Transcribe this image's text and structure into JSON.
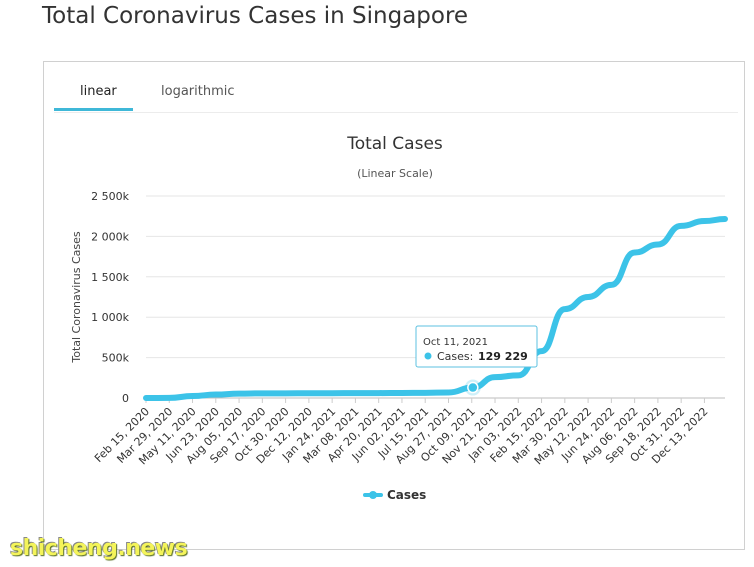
{
  "page": {
    "title": "Total Coronavirus Cases in Singapore"
  },
  "tabs": [
    {
      "label": "linear",
      "active": true
    },
    {
      "label": "logarithmic",
      "active": false
    }
  ],
  "colors": {
    "series": "#3cc3e8",
    "accent": "#3fb8d8"
  },
  "tooltip": {
    "date": "Oct 11, 2021",
    "label": "Cases:",
    "value": "129 229"
  },
  "watermark": {
    "text": "shicheng.news"
  },
  "chart_data": {
    "type": "line",
    "title": "Total Cases",
    "subtitle": "(Linear Scale)",
    "ylabel": "Total Coronavirus Cases",
    "xlabel": "",
    "ylim": [
      0,
      2500000
    ],
    "yticks": [
      0,
      500000,
      1000000,
      1500000,
      2000000,
      2500000
    ],
    "ytick_labels": [
      "0",
      "500k",
      "1 000k",
      "1 500k",
      "2 000k",
      "2 500k"
    ],
    "xtick_labels": [
      "Feb 15, 2020",
      "Mar 29, 2020",
      "May 11, 2020",
      "Jun 23, 2020",
      "Aug 05, 2020",
      "Sep 17, 2020",
      "Oct 30, 2020",
      "Dec 12, 2020",
      "Jan 24, 2021",
      "Mar 08, 2021",
      "Apr 20, 2021",
      "Jun 02, 2021",
      "Jul 15, 2021",
      "Aug 27, 2021",
      "Oct 09, 2021",
      "Nov 21, 2021",
      "Jan 03, 2022",
      "Feb 15, 2022",
      "Mar 30, 2022",
      "May 12, 2022",
      "Jun 24, 2022",
      "Aug 06, 2022",
      "Sep 18, 2022",
      "Oct 31, 2022",
      "Dec 13, 2022"
    ],
    "legend": {
      "position": "bottom",
      "entries": [
        "Cases"
      ]
    },
    "grid": true,
    "series": [
      {
        "name": "Cases",
        "x": [
          "Feb 15, 2020",
          "Mar 29, 2020",
          "May 11, 2020",
          "Jun 23, 2020",
          "Aug 05, 2020",
          "Sep 17, 2020",
          "Oct 30, 2020",
          "Dec 12, 2020",
          "Jan 24, 2021",
          "Mar 08, 2021",
          "Apr 20, 2021",
          "Jun 02, 2021",
          "Jul 15, 2021",
          "Aug 27, 2021",
          "Oct 11, 2021",
          "Nov 21, 2021",
          "Jan 03, 2022",
          "Feb 15, 2022",
          "Mar 30, 2022",
          "May 12, 2022",
          "Jun 24, 2022",
          "Aug 06, 2022",
          "Sep 18, 2022",
          "Oct 31, 2022",
          "Dec 13, 2022",
          "Jan 20, 2023"
        ],
        "values": [
          100,
          1000,
          24000,
          43000,
          54000,
          57600,
          58000,
          58400,
          59300,
          60000,
          61000,
          62000,
          64000,
          68000,
          129229,
          258000,
          280000,
          580000,
          1100000,
          1250000,
          1400000,
          1800000,
          1900000,
          2130000,
          2190000,
          2215000
        ]
      }
    ]
  }
}
